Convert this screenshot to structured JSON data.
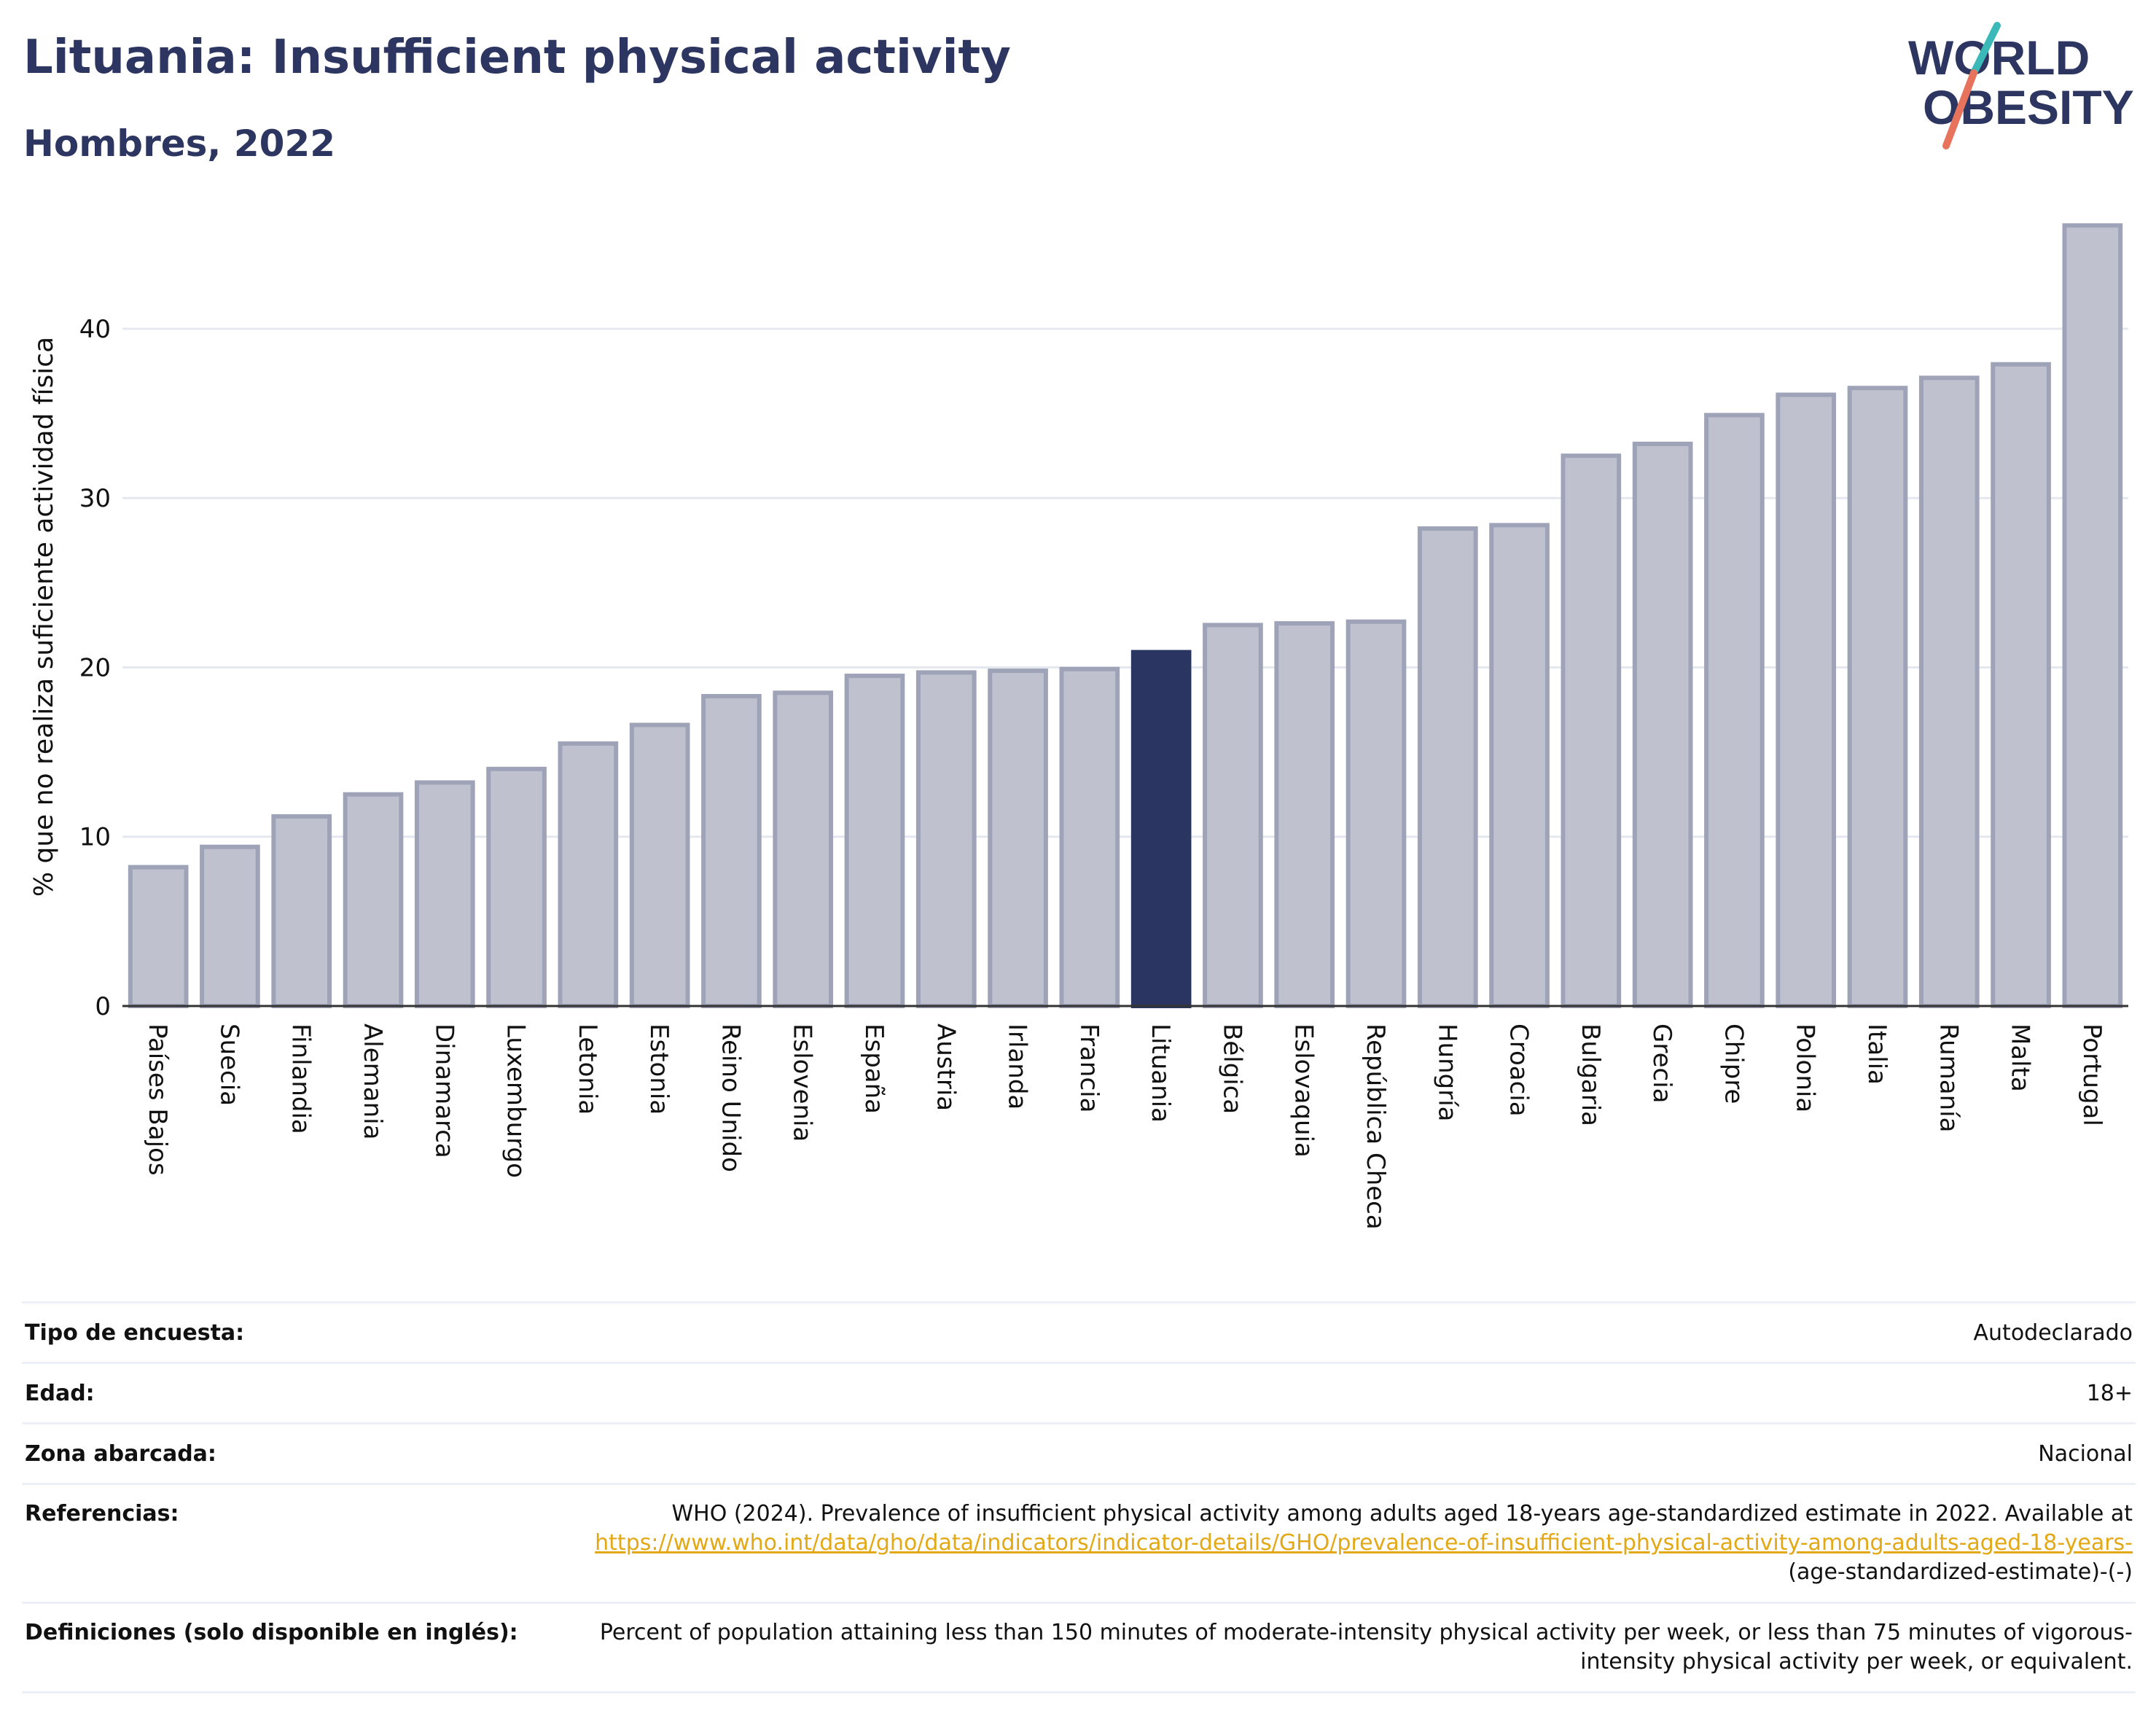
{
  "header": {
    "title": "Lituania: Insufficient physical activity",
    "subtitle": "Hombres, 2022"
  },
  "logo": {
    "line1": "WORLD",
    "line2": "OBESITY"
  },
  "colors": {
    "bar": "#bfc2ce",
    "bar_border": "#9ea3b8",
    "highlight": "#2a3561",
    "title": "#2d3561",
    "grid": "#e6e8ef",
    "link": "#e3a815",
    "logo_teal": "#3bb8b8",
    "logo_coral": "#e8735c"
  },
  "chart_data": {
    "type": "bar",
    "ylabel": "% que no realiza suficiente actividad física",
    "xlabel": "",
    "ylim": [
      0,
      46.5
    ],
    "yticks": [
      0,
      10,
      20,
      30,
      40
    ],
    "grid": true,
    "highlight": "Lituania",
    "categories": [
      "Países Bajos",
      "Suecia",
      "Finlandia",
      "Alemania",
      "Dinamarca",
      "Luxemburgo",
      "Letonia",
      "Estonia",
      "Reino Unido",
      "Eslovenia",
      "España",
      "Austria",
      "Irlanda",
      "Francia",
      "Lituania",
      "Bélgica",
      "Eslovaquia",
      "República Checa",
      "Hungría",
      "Croacia",
      "Bulgaria",
      "Grecia",
      "Chipre",
      "Polonia",
      "Italia",
      "Rumanía",
      "Malta",
      "Portugal"
    ],
    "values": [
      8.2,
      9.4,
      11.2,
      12.5,
      13.2,
      14.0,
      15.5,
      16.6,
      18.3,
      18.5,
      19.5,
      19.7,
      19.8,
      19.9,
      20.9,
      22.5,
      22.6,
      22.7,
      28.2,
      28.4,
      32.5,
      33.2,
      34.9,
      36.1,
      36.5,
      37.1,
      37.9,
      46.1
    ]
  },
  "info": {
    "survey_label": "Tipo de encuesta:",
    "survey_value": "Autodeclarado",
    "age_label": "Edad:",
    "age_value": "18+",
    "area_label": "Zona abarcada:",
    "area_value": "Nacional",
    "refs_label": "Referencias:",
    "refs_text": "WHO (2024). Prevalence of insufficient physical activity among adults aged 18-years age-standardized estimate in 2022. Available at",
    "refs_link": "https://www.who.int/data/gho/data/indicators/indicator-details/GHO/prevalence-of-insufficient-physical-activity-among-adults-aged-18-years-",
    "refs_suffix": "(age-standardized-estimate)-(-)",
    "defs_label": "Definiciones (solo disponible en inglés):",
    "defs_text": "Percent of population attaining less than 150 minutes of moderate-intensity physical activity per week, or less than 75 minutes of vigorous-intensity physical activity per week, or equivalent."
  }
}
